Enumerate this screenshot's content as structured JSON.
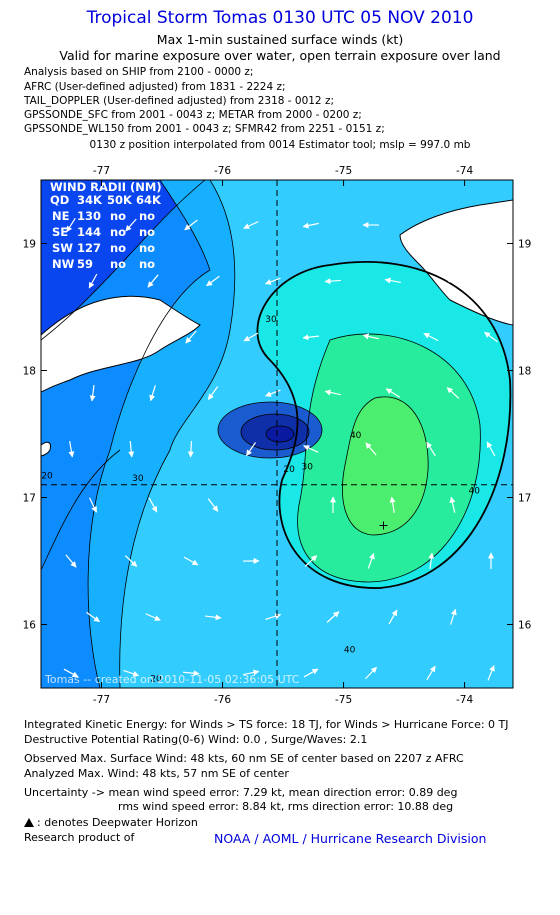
{
  "header": {
    "title": "Tropical Storm Tomas 0130 UTC 05 NOV 2010",
    "subtitle1": "Max 1-min sustained surface winds (kt)",
    "subtitle2": "Valid for marine exposure over water, open terrain exposure over land",
    "analysis_lines": [
      "Analysis based on SHIP from 2100 - 0000 z;",
      "AFRC (User-defined adjusted) from 1831 - 2224 z;",
      "TAIL_DOPPLER (User-defined adjusted) from 2318 - 0012 z;",
      "GPSSONDE_SFC from 2001 - 0043 z; METAR from 2000 - 0200 z;",
      "GPSSONDE_WL150 from 2001 - 0043 z; SFMR42 from 2251 - 0151 z;"
    ],
    "center_line": "0130 z position interpolated from 0014 Estimator tool; mslp = 997.0 mb"
  },
  "chart_data": {
    "type": "contour",
    "x_ticks": [
      "-77",
      "-76",
      "-75",
      "-74"
    ],
    "y_ticks": [
      "19",
      "18",
      "17",
      "16"
    ],
    "xlim": [
      -77.5,
      -73.6
    ],
    "ylim": [
      15.5,
      19.5
    ],
    "storm_center": {
      "lon": -75.55,
      "lat": 17.1
    },
    "wind_max_marker": {
      "lon": -74.67,
      "lat": 16.78
    },
    "contour_labels": [
      {
        "text": "30",
        "lon": -75.6,
        "lat": 18.38
      },
      {
        "text": "30",
        "lon": -75.3,
        "lat": 17.22
      },
      {
        "text": "30",
        "lon": -76.7,
        "lat": 17.13
      },
      {
        "text": "40",
        "lon": -74.9,
        "lat": 17.47
      },
      {
        "text": "40",
        "lon": -74.95,
        "lat": 15.78
      },
      {
        "text": "40",
        "lon": -73.92,
        "lat": 17.03
      },
      {
        "text": "20",
        "lon": -75.45,
        "lat": 17.2
      },
      {
        "text": "20",
        "lon": -77.45,
        "lat": 17.15
      },
      {
        "text": "20",
        "lon": -76.55,
        "lat": 15.55
      }
    ],
    "colors": {
      "c10": "#0a46f0",
      "c20": "#0d8cff",
      "c25": "#17b0ff",
      "c30": "#33ccff",
      "c35": "#19e8e6",
      "c40": "#27ec9d",
      "c45": "#4cee70",
      "core1": "#1a5ccf",
      "core2": "#0e2fa8",
      "core3": "#0a1aa0",
      "land": "#ffffff",
      "arrow": "#ffffff"
    },
    "wind_radii": {
      "title": "WIND RADII (NM)",
      "header": [
        "QD",
        "34K",
        "50K",
        "64K"
      ],
      "rows": [
        [
          "NE",
          "130",
          "no",
          "no"
        ],
        [
          "SE",
          "144",
          "no",
          "no"
        ],
        [
          "SW",
          "127",
          "no",
          "no"
        ],
        [
          "NW",
          "59",
          "no",
          "no"
        ]
      ]
    },
    "watermark": "Tomas -- created on 2010-11-05 02:36:05 UTC"
  },
  "footer": {
    "ike": "Integrated Kinetic Energy:  for Winds > TS force: 18 TJ,  for Winds > Hurricane Force: 0 TJ",
    "dpr": "Destructive Potential Rating(0-6)   Wind: 0.0 , Surge/Waves: 2.1",
    "obs_max": "Observed Max. Surface Wind: 48 kts, 60 nm SE of center based on 2207 z AFRC",
    "ana_max": "Analyzed Max. Wind: 48 kts, 57 nm SE of center",
    "unc1": "Uncertainty -> mean wind speed error: 7.29 kt,   mean direction error: 0.89 deg",
    "unc2": "rms wind speed error: 8.84 kt,   rms direction error: 10.88 deg",
    "legend_dwh": ": denotes Deepwater Horizon",
    "research": "Research product of",
    "credit": "NOAA / AOML / Hurricane Research Division"
  }
}
